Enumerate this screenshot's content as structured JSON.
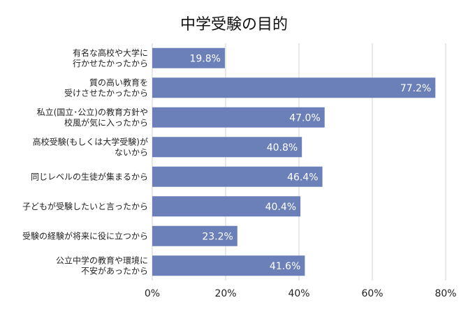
{
  "chart_data": {
    "type": "bar",
    "orientation": "horizontal",
    "title": "中学受験の目的",
    "categories": [
      [
        "有名な高校や大学に",
        "行かせたかったから"
      ],
      [
        "質の高い教育を",
        "受けさせたかったから"
      ],
      [
        "私立(国立･公立)の教育方針や",
        "校風が気に入ったから"
      ],
      [
        "高校受験(もしくは大学受験)が",
        "ないから"
      ],
      [
        "同じレベルの生徒が集まるから"
      ],
      [
        "子どもが受験したいと言ったから"
      ],
      [
        "受験の経験が将来に役に立つから"
      ],
      [
        "公立中学の教育や環境に",
        "不安があったから"
      ]
    ],
    "values": [
      19.8,
      77.2,
      47.0,
      40.8,
      46.4,
      40.4,
      23.2,
      41.6
    ],
    "data_labels": [
      "19.8%",
      "77.2%",
      "47.0%",
      "40.8%",
      "46.4%",
      "40.4%",
      "23.2%",
      "41.6%"
    ],
    "xlim": [
      0,
      80
    ],
    "x_ticks": [
      0,
      20,
      40,
      60,
      80
    ],
    "x_tick_labels": [
      "0%",
      "20%",
      "40%",
      "60%",
      "80%"
    ],
    "grid": true,
    "bar_color": "#6b80b8",
    "grid_color": "#d0d0d0"
  }
}
